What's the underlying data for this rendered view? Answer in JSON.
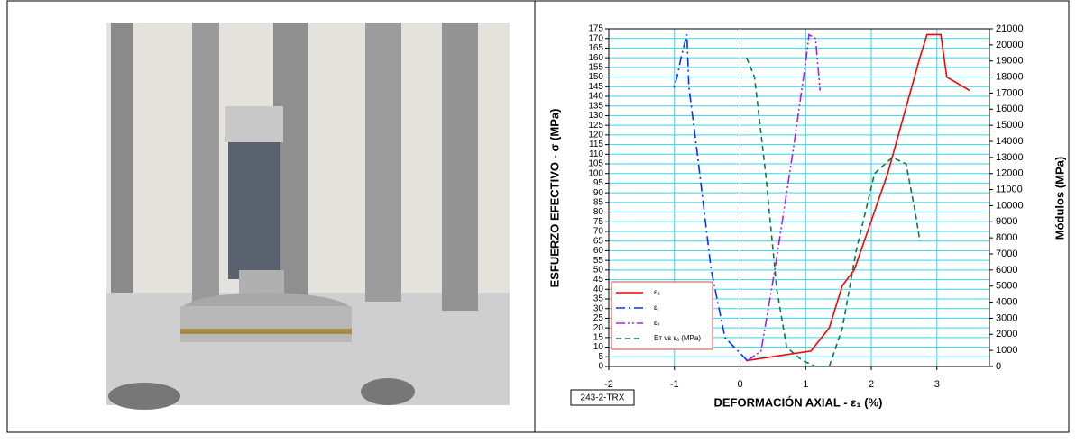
{
  "chart_data": {
    "type": "line",
    "xlabel": "DEFORMACIÓN AXIAL - ε₁ (%)",
    "ylabel": "ESFUERZO EFECTIVO - σ (MPa)",
    "y2label": "Módulos (MPa)",
    "annotation": "243-2-TRX",
    "xlim": [
      -2,
      3.8
    ],
    "xticks": [
      -2,
      -1,
      0,
      1,
      2,
      3
    ],
    "ylim": [
      0,
      175
    ],
    "yticks": [
      0,
      5,
      10,
      15,
      20,
      25,
      30,
      35,
      40,
      45,
      50,
      55,
      60,
      65,
      70,
      75,
      80,
      85,
      90,
      95,
      100,
      105,
      110,
      115,
      120,
      125,
      130,
      135,
      140,
      145,
      150,
      155,
      160,
      165,
      170,
      175
    ],
    "y2lim": [
      0,
      21000
    ],
    "y2ticks": [
      0,
      1000,
      2000,
      3000,
      4000,
      5000,
      6000,
      7000,
      8000,
      9000,
      10000,
      11000,
      12000,
      13000,
      14000,
      15000,
      16000,
      17000,
      18000,
      19000,
      20000,
      21000
    ],
    "grid": true,
    "grid_color": "#33d6e8",
    "legend": "lower left",
    "series": [
      {
        "name": "εₐ",
        "color": "#ff0000",
        "line_style": "solid",
        "x": [
          0.09,
          1.08,
          1.36,
          1.56,
          1.74,
          2.25,
          2.74,
          2.85,
          3.06,
          3.15,
          3.5
        ],
        "values": [
          3,
          8,
          20,
          42,
          50,
          100,
          160,
          172,
          172,
          150,
          143
        ]
      },
      {
        "name": "εᵣ",
        "color": "#0033ff",
        "line_style": "dash-dot",
        "x": [
          0.11,
          -0.23,
          -0.44,
          -0.65,
          -0.78,
          -0.81,
          -0.9,
          -0.96,
          -1.02
        ],
        "values": [
          3,
          15,
          50,
          110,
          145,
          172,
          160,
          150,
          143
        ]
      },
      {
        "name": "εᵥ",
        "color": "#aa22dd",
        "line_style": "dash-dot-dot",
        "x": [
          0.11,
          0.32,
          0.53,
          0.8,
          1.01,
          1.05,
          1.15,
          1.22
        ],
        "values": [
          3,
          8,
          50,
          110,
          160,
          172,
          170,
          143
        ]
      },
      {
        "name": "Eᴛ vs εₐ (MPa)",
        "color": "#117744",
        "line_style": "dashed",
        "axis": "y2",
        "x": [
          0.1,
          0.22,
          0.39,
          0.56,
          0.71,
          0.94,
          1.15,
          1.36,
          1.56,
          1.77,
          2.05,
          2.32,
          2.53,
          2.67,
          2.74
        ],
        "values": [
          19200,
          18000,
          12000,
          4800,
          1200,
          400,
          0,
          0,
          2400,
          7200,
          12000,
          13000,
          12600,
          9600,
          7800
        ]
      }
    ]
  }
}
